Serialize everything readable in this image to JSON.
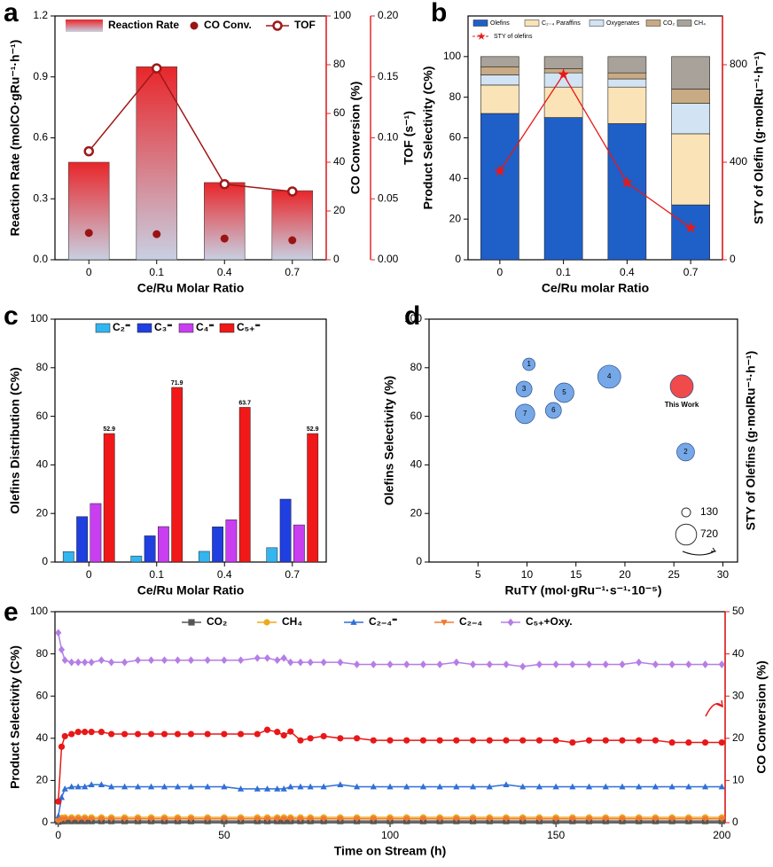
{
  "chart_data": [
    {
      "type": "combo",
      "panel": "a",
      "xlabel": "Ce/Ru Molar Ratio",
      "ylabel": "Reaction Rate (molCO·gRu⁻¹·h⁻¹)",
      "y2label": "CO Conversion (%)",
      "y3label": "TOF (s⁻¹)",
      "axis_color": "#e8262a",
      "categories": [
        "0",
        "0.1",
        "0.4",
        "0.7"
      ],
      "ylim": [
        0,
        1.2
      ],
      "yticks": [
        {
          "value": 0,
          "label": "0.0"
        },
        0.3,
        0.6,
        0.9,
        1.2
      ],
      "y2lim": [
        0,
        100
      ],
      "y2ticks": [
        0,
        20,
        40,
        60,
        80,
        100
      ],
      "y3lim": [
        0,
        0.2
      ],
      "y3ticks": [
        {
          "value": 0,
          "label": "0.00"
        },
        0.05,
        {
          "value": 0.1,
          "label": "0.10"
        },
        0.15,
        {
          "value": 0.2,
          "label": "0.20"
        }
      ],
      "series": [
        {
          "name": "Reaction Rate",
          "kind": "bar",
          "color": "#e8262a",
          "values": [
            0.48,
            0.95,
            0.38,
            0.34
          ]
        },
        {
          "name": "CO Conv.",
          "kind": "scatter",
          "color": "#9a1414",
          "axis": "y2",
          "values": [
            11,
            10.5,
            8.7,
            8
          ]
        },
        {
          "name": "TOF",
          "kind": "line",
          "color": "#a01818",
          "axis": "y3",
          "values": [
            0.089,
            0.157,
            0.062,
            0.056
          ]
        }
      ]
    },
    {
      "type": "stacked_bar",
      "panel": "b",
      "xlabel": "Ce/Ru molar Ratio",
      "ylabel": "Product Selectivity (C%)",
      "y2label": "STY of Olefin (g·molRu⁻¹·h⁻¹)",
      "axis_color": "#e81818",
      "categories": [
        "0",
        "0.1",
        "0.4",
        "0.7"
      ],
      "ylim": [
        0,
        120
      ],
      "yticks": [
        0,
        20,
        40,
        60,
        80,
        100
      ],
      "y2lim": [
        0,
        1000
      ],
      "y2ticks": [
        0,
        400,
        800
      ],
      "series": [
        {
          "name": "Olefins",
          "kind": "bar",
          "color": "#1f5fc8",
          "values": [
            72,
            70,
            67,
            27
          ]
        },
        {
          "name": "C₂₋₄ Paraffins",
          "kind": "bar",
          "color": "#fbe3b8",
          "values": [
            14,
            15,
            18,
            35
          ]
        },
        {
          "name": "Oxygenates",
          "kind": "bar",
          "color": "#d2e3f3",
          "values": [
            5,
            7,
            4,
            15
          ]
        },
        {
          "name": "CO₂",
          "kind": "bar",
          "color": "#c8aa84",
          "values": [
            4,
            2,
            3,
            7
          ]
        },
        {
          "name": "CH₄",
          "kind": "bar",
          "color": "#a8a29a",
          "values": [
            5,
            6,
            8,
            16
          ]
        },
        {
          "name": "STY of olefins",
          "kind": "line",
          "color": "#e81818",
          "axis": "y2",
          "values": [
            364,
            760,
            316,
            131
          ]
        }
      ]
    },
    {
      "type": "grouped_bar",
      "panel": "c",
      "xlabel": "Ce/Ru Molar Ratio",
      "ylabel": "Olefins Distribution (C%)",
      "categories": [
        "0",
        "0.1",
        "0.4",
        "0.7"
      ],
      "ylim": [
        0,
        100
      ],
      "yticks": [
        0,
        20,
        40,
        60,
        80,
        100
      ],
      "series": [
        {
          "name": "C₂⁼",
          "color": "#33b5f0",
          "values": [
            4.3,
            2.5,
            4.4,
            5.9
          ]
        },
        {
          "name": "C₃⁼",
          "color": "#1f3fe0",
          "values": [
            18.7,
            10.8,
            14.5,
            25.9
          ]
        },
        {
          "name": "C₄⁼",
          "color": "#c83ef0",
          "values": [
            24.1,
            14.6,
            17.4,
            15.3
          ]
        },
        {
          "name": "C₅₊⁼",
          "color": "#f01818",
          "values": [
            52.9,
            71.9,
            63.7,
            52.9
          ],
          "show_values": true
        }
      ]
    },
    {
      "type": "bubble",
      "panel": "d",
      "xlabel": "RuTY (mol·gRu⁻¹·s⁻¹·10⁻⁵)",
      "ylabel": "Olefins Selectivity (%)",
      "size_label": "STY of Olefins (g·molRu⁻¹·h⁻¹)",
      "xlim": [
        0,
        31.5
      ],
      "xticks": [
        5,
        10,
        15,
        20,
        25,
        30
      ],
      "ylim": [
        0,
        100
      ],
      "yticks": [
        0,
        20,
        40,
        60,
        80,
        100
      ],
      "size_legend": [
        130,
        720
      ],
      "series": [
        {
          "color": "#6fa3e6",
          "label_position": "center",
          "labels": [
            "1",
            "2",
            "3",
            "4",
            "5",
            "6",
            "7"
          ],
          "x": [
            10.2,
            26.2,
            9.7,
            18.4,
            13.8,
            12.7,
            9.8
          ],
          "y": [
            81.4,
            45.3,
            71.2,
            76.3,
            69.7,
            62.4,
            61
          ],
          "size": [
            253,
            516,
            418,
            873,
            625,
            418,
            625
          ]
        },
        {
          "color": "#f04040",
          "label_position": "below",
          "labels": [
            "This Work"
          ],
          "x": [
            25.8
          ],
          "y": [
            72.3
          ],
          "size": [
            873
          ]
        }
      ]
    },
    {
      "type": "line",
      "panel": "e",
      "xlabel": "Time on Stream (h)",
      "ylabel": "Product Selectivity (C%)",
      "y2label": "CO Conversion (%)",
      "axis_color": "#e81818",
      "xlim": [
        -1,
        201
      ],
      "xticks": [
        0,
        50,
        100,
        150,
        200
      ],
      "ylim": [
        0,
        100
      ],
      "yticks": [
        0,
        20,
        40,
        60,
        80,
        100
      ],
      "y2lim": [
        0,
        50
      ],
      "y2ticks": [
        0,
        10,
        20,
        30,
        40,
        50
      ],
      "x": [
        0,
        1,
        2,
        4,
        6,
        8,
        10,
        13,
        16,
        20,
        24,
        28,
        32,
        36,
        40,
        45,
        50,
        55,
        60,
        63,
        66,
        68,
        70,
        73,
        76,
        80,
        85,
        90,
        95,
        100,
        105,
        110,
        115,
        120,
        125,
        130,
        135,
        140,
        145,
        150,
        155,
        160,
        165,
        170,
        175,
        180,
        185,
        190,
        195,
        200
      ],
      "series": [
        {
          "name": "CO₂",
          "marker": "square",
          "color": "#555555",
          "values": [
            0.5,
            0.8,
            0.8,
            0.8,
            0.8,
            0.8,
            0.8,
            0.8,
            0.8,
            0.8,
            0.8,
            0.8,
            0.8,
            0.8,
            0.8,
            0.8,
            0.8,
            0.8,
            0.8,
            0.8,
            0.8,
            0.8,
            0.8,
            0.8,
            0.8,
            0.8,
            0.8,
            0.8,
            0.8,
            0.8,
            0.8,
            0.8,
            0.8,
            0.8,
            0.8,
            0.8,
            0.8,
            0.8,
            0.8,
            0.8,
            0.8,
            0.8,
            0.8,
            0.8,
            0.8,
            0.8,
            0.8,
            0.8,
            0.8,
            0.8
          ]
        },
        {
          "name": "CH₄",
          "marker": "circle",
          "color": "#f0a81c",
          "values": [
            1.5,
            2.3,
            2.5,
            2.5,
            2.5,
            2.5,
            2.5,
            2.5,
            2.5,
            2.5,
            2.5,
            2.5,
            2.5,
            2.5,
            2.5,
            2.5,
            2.5,
            2.5,
            2.5,
            2.5,
            2.5,
            2.5,
            2.5,
            2.5,
            2.5,
            2.5,
            2.5,
            2.5,
            2.5,
            2.5,
            2.5,
            2.5,
            2.5,
            2.5,
            2.5,
            2.5,
            2.5,
            2.5,
            2.5,
            2.5,
            2.5,
            2.5,
            2.5,
            2.5,
            2.5,
            2.5,
            2.5,
            2.5,
            2.5,
            2.5
          ]
        },
        {
          "name": "C₂₋₄⁼",
          "marker": "triangle",
          "color": "#2f6fd6",
          "values": [
            3,
            12,
            16,
            17,
            17,
            17,
            18,
            18,
            17,
            17,
            17,
            17,
            17,
            17,
            17,
            17,
            17,
            16,
            16,
            16,
            16,
            16,
            17,
            17,
            17,
            17,
            18,
            17,
            17,
            17,
            17,
            17,
            17,
            17,
            17,
            17,
            18,
            17,
            17,
            17,
            17,
            17,
            17,
            17,
            17,
            17,
            17,
            17,
            17,
            17
          ]
        },
        {
          "name": "C₂₋₄",
          "marker": "triangle-down",
          "color": "#f07830",
          "values": [
            1,
            1.7,
            1.8,
            1.8,
            1.8,
            1.8,
            1.8,
            1.8,
            1.8,
            1.8,
            1.8,
            1.8,
            1.8,
            1.8,
            1.8,
            1.8,
            1.8,
            1.8,
            1.8,
            1.8,
            1.8,
            1.8,
            1.8,
            1.8,
            1.8,
            1.8,
            1.8,
            1.8,
            1.8,
            1.8,
            1.8,
            1.8,
            1.8,
            1.8,
            1.8,
            1.8,
            1.8,
            1.8,
            1.8,
            1.8,
            1.8,
            1.8,
            1.8,
            1.8,
            1.8,
            1.8,
            1.8,
            1.8,
            1.8,
            1.8
          ]
        },
        {
          "name": "C₅₊+Oxy.",
          "marker": "diamond",
          "color": "#b57ee6",
          "values": [
            90,
            82,
            77,
            76,
            76,
            76,
            76,
            77,
            76,
            76,
            77,
            77,
            77,
            77,
            77,
            77,
            77,
            77,
            78,
            78,
            77,
            78,
            76,
            76,
            76,
            76,
            76,
            75,
            75,
            75,
            75,
            75,
            75,
            76,
            75,
            75,
            75,
            74,
            75,
            75,
            75,
            75,
            75,
            75,
            76,
            75,
            75,
            75,
            75,
            75
          ]
        },
        {
          "marker": "circle",
          "color": "#e81818",
          "axis": "y2",
          "values": [
            5,
            18,
            20.5,
            21,
            21.5,
            21.5,
            21.5,
            21.5,
            21,
            21,
            21,
            21,
            21,
            21,
            21,
            21,
            21,
            21,
            21,
            22,
            21.5,
            20.7,
            21.6,
            19.5,
            20,
            20.5,
            20,
            20,
            19.5,
            19.5,
            19.5,
            19.5,
            19.5,
            19.5,
            19.5,
            19.5,
            19.5,
            19.5,
            19.5,
            19.5,
            19,
            19.5,
            19.5,
            19.5,
            19.5,
            19.5,
            19,
            19,
            19,
            19
          ]
        }
      ]
    }
  ]
}
